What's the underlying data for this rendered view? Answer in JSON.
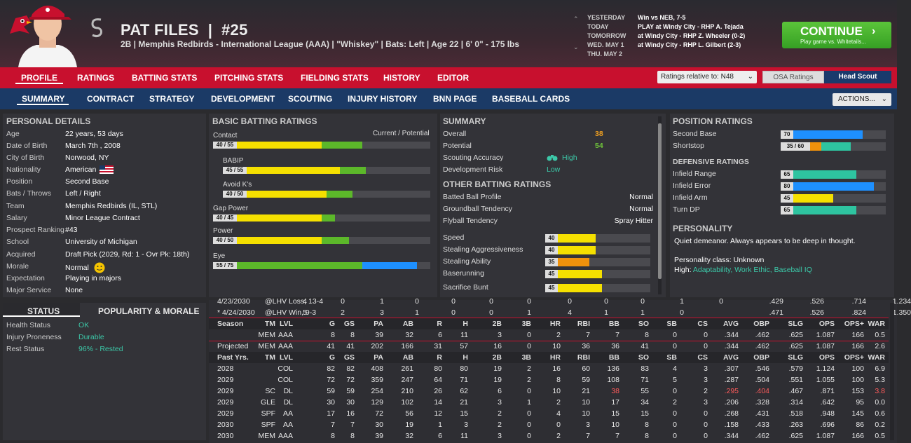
{
  "header": {
    "name": "PAT FILES",
    "number": "#25",
    "subtitle": "2B | Memphis Redbirds - International League (AAA)  |  \"Whiskey\" | Bats: Left  |  Age 22  |  6' 0\" - 175 lbs"
  },
  "schedule": [
    {
      "day": "YESTERDAY",
      "game": "Win vs NEB, 7-5"
    },
    {
      "day": "TODAY",
      "game": "PLAY at Windy City - RHP A. Tejada"
    },
    {
      "day": "TOMORROW",
      "game": "at Windy City - RHP Z. Wheeler (0-2)"
    },
    {
      "day": "WED. MAY 1",
      "game": "at Windy City - RHP L. Gilbert (2-3)"
    },
    {
      "day": "THU. MAY 2",
      "game": ""
    }
  ],
  "continue": {
    "label": "CONTINUE",
    "sub": "Play game vs. Whitetails..."
  },
  "nav1": [
    "PROFILE",
    "RATINGS",
    "BATTING STATS",
    "PITCHING STATS",
    "FIELDING STATS",
    "HISTORY",
    "EDITOR"
  ],
  "ratings_rel": "Ratings relative to: N48",
  "osa": "OSA Ratings",
  "scout": "Head Scout",
  "nav2": [
    "SUMMARY",
    "CONTRACT",
    "STRATEGY",
    "DEVELOPMENT",
    "SCOUTING",
    "INJURY HISTORY",
    "BNN PAGE",
    "BASEBALL CARDS"
  ],
  "actions": "ACTIONS...",
  "personal": {
    "title": "PERSONAL DETAILS",
    "rows": [
      {
        "label": "Age",
        "value": "22 years, 53 days"
      },
      {
        "label": "Date of Birth",
        "value": "March 7th , 2008"
      },
      {
        "label": "City of Birth",
        "value": "Norwood, NY"
      },
      {
        "label": "Nationality",
        "value": "American"
      },
      {
        "label": "Position",
        "value": "Second Base"
      },
      {
        "label": "Bats / Throws",
        "value": "Left / Right"
      },
      {
        "label": "Team",
        "value": "Memphis Redbirds (IL, STL)"
      },
      {
        "label": "Salary",
        "value": "Minor League Contract"
      },
      {
        "label": "Prospect Ranking",
        "value": "#43"
      },
      {
        "label": "School",
        "value": "University of Michigan"
      },
      {
        "label": "Acquired",
        "value": "Draft Pick (2029, Rd: 1 - Ovr Pk: 18th)"
      },
      {
        "label": "Morale",
        "value": "Normal"
      },
      {
        "label": "Expectation",
        "value": "Playing in majors"
      },
      {
        "label": "Major Service",
        "value": "None"
      }
    ]
  },
  "status": {
    "tab1": "STATUS",
    "tab2": "POPULARITY & MORALE",
    "rows": [
      {
        "label": "Health Status",
        "value": "OK"
      },
      {
        "label": "Injury Proneness",
        "value": "Durable"
      },
      {
        "label": "Rest Status",
        "value": "96% - Rested"
      }
    ]
  },
  "batting": {
    "title": "BASIC BATTING RATINGS",
    "header_right": "Current / Potential",
    "ratings": [
      {
        "name": "Contact",
        "label": "40 / 55",
        "current": 40,
        "potential": 55,
        "indent": false
      },
      {
        "name": "BABIP",
        "label": "45 / 55",
        "current": 45,
        "potential": 55,
        "indent": true
      },
      {
        "name": "Avoid K's",
        "label": "40 / 50",
        "current": 40,
        "potential": 50,
        "indent": true
      },
      {
        "name": "Gap Power",
        "label": "40 / 45",
        "current": 40,
        "potential": 45,
        "indent": false
      },
      {
        "name": "Power",
        "label": "40 / 50",
        "current": 40,
        "potential": 50,
        "indent": false
      },
      {
        "name": "Eye",
        "label": "55 / 75",
        "current": 55,
        "potential": 75,
        "indent": false
      }
    ]
  },
  "summary": {
    "title": "SUMMARY",
    "overall_label": "Overall",
    "overall": "38",
    "potential_label": "Potential",
    "potential": "54",
    "scouting_label": "Scouting Accuracy",
    "scouting": "High",
    "risk_label": "Development Risk",
    "risk": "Low",
    "other_title": "OTHER BATTING RATINGS",
    "other": [
      {
        "label": "Batted Ball Profile",
        "value": "Normal"
      },
      {
        "label": "Groundball Tendency",
        "value": "Normal"
      },
      {
        "label": "Flyball Tendency",
        "value": "Spray Hitter"
      }
    ],
    "running": [
      {
        "label": "Speed",
        "value": 40
      },
      {
        "label": "Stealing Aggressiveness",
        "value": 40
      },
      {
        "label": "Stealing Ability",
        "value": 35
      },
      {
        "label": "Baserunning",
        "value": 45
      },
      {
        "label": "Sacrifice Bunt",
        "value": 45
      }
    ]
  },
  "position": {
    "title": "POSITION RATINGS",
    "positions": [
      {
        "label": "Second Base",
        "value": "70",
        "current": 70,
        "potential": 70
      },
      {
        "label": "Shortstop",
        "value": "35 / 60",
        "current": 35,
        "potential": 60
      }
    ],
    "def_title": "DEFENSIVE RATINGS",
    "defensive": [
      {
        "label": "Infield Range",
        "value": 65
      },
      {
        "label": "Infield Error",
        "value": 80
      },
      {
        "label": "Infield Arm",
        "value": 45
      },
      {
        "label": "Turn DP",
        "value": 65
      }
    ],
    "pers_title": "PERSONALITY",
    "pers_text": "Quiet demeanor. Always appears to be deep in thought.",
    "pers_class": "Personality class: Unknown",
    "high_label": "High:",
    "high_value": "Adaptability, Work Ethic, Baseball IQ"
  },
  "stats": {
    "games": [
      {
        "c0": "4/23/2030",
        "c1": "@LHV Loss, 13-4",
        "vals": [
          "4",
          "0",
          "1",
          "0",
          "0",
          "0",
          "0",
          "0",
          "0",
          "0",
          "1",
          "0",
          ".429",
          ".526",
          ".714",
          "1.234"
        ]
      },
      {
        "c0": "* 4/24/2030",
        "c1": "@LHV Win, 9-3",
        "vals": [
          "5",
          "2",
          "3",
          "1",
          "0",
          "0",
          "1",
          "4",
          "1",
          "1",
          "0",
          "",
          ".471",
          ".526",
          ".824",
          "1.350"
        ]
      }
    ],
    "season_header": [
      "Season",
      "TM",
      "LVL",
      "G",
      "GS",
      "PA",
      "AB",
      "R",
      "H",
      "2B",
      "3B",
      "HR",
      "RBI",
      "BB",
      "SO",
      "SB",
      "CS",
      "AVG",
      "OBP",
      "SLG",
      "OPS",
      "OPS+",
      "WAR"
    ],
    "season_rows": [
      [
        "",
        "MEM",
        "AAA",
        "8",
        "8",
        "39",
        "32",
        "6",
        "11",
        "3",
        "0",
        "2",
        "7",
        "7",
        "8",
        "0",
        "0",
        ".344",
        ".462",
        ".625",
        "1.087",
        "166",
        "0.5"
      ],
      [
        "Projected",
        "MEM",
        "AAA",
        "41",
        "41",
        "202",
        "166",
        "31",
        "57",
        "16",
        "0",
        "10",
        "36",
        "36",
        "41",
        "0",
        "0",
        ".344",
        ".462",
        ".625",
        "1.087",
        "166",
        "2.6"
      ]
    ],
    "past_header": [
      "Past Yrs.",
      "TM",
      "LVL",
      "G",
      "GS",
      "PA",
      "AB",
      "R",
      "H",
      "2B",
      "3B",
      "HR",
      "RBI",
      "BB",
      "SO",
      "SB",
      "CS",
      "AVG",
      "OBP",
      "SLG",
      "OPS",
      "OPS+",
      "WAR"
    ],
    "past_rows": [
      [
        "2028",
        "",
        "COL",
        "82",
        "82",
        "408",
        "261",
        "80",
        "80",
        "19",
        "2",
        "16",
        "60",
        "136",
        "83",
        "4",
        "3",
        ".307",
        ".546",
        ".579",
        "1.124",
        "100",
        "6.9"
      ],
      [
        "2029",
        "",
        "COL",
        "72",
        "72",
        "359",
        "247",
        "64",
        "71",
        "19",
        "2",
        "8",
        "59",
        "108",
        "71",
        "5",
        "3",
        ".287",
        ".504",
        ".551",
        "1.055",
        "100",
        "5.3"
      ],
      [
        "2029",
        "SC",
        "DL",
        "59",
        "59",
        "254",
        "210",
        "26",
        "62",
        "6",
        "0",
        "10",
        "21",
        "38",
        "55",
        "0",
        "2",
        ".295",
        ".404",
        ".467",
        ".871",
        "153",
        "3.8"
      ],
      [
        "2029",
        "GLE",
        "DL",
        "30",
        "30",
        "129",
        "102",
        "14",
        "21",
        "3",
        "1",
        "2",
        "10",
        "17",
        "34",
        "2",
        "3",
        ".206",
        ".328",
        ".314",
        ".642",
        "95",
        "0.0"
      ],
      [
        "2029",
        "SPF",
        "AA",
        "17",
        "16",
        "72",
        "56",
        "12",
        "15",
        "2",
        "0",
        "4",
        "10",
        "15",
        "15",
        "0",
        "0",
        ".268",
        ".431",
        ".518",
        ".948",
        "145",
        "0.6"
      ],
      [
        "2030",
        "SPF",
        "AA",
        "7",
        "7",
        "30",
        "19",
        "1",
        "3",
        "2",
        "0",
        "0",
        "3",
        "10",
        "8",
        "0",
        "0",
        ".158",
        ".433",
        ".263",
        ".696",
        "86",
        "0.2"
      ],
      [
        "2030",
        "MEM",
        "AAA",
        "8",
        "8",
        "39",
        "32",
        "6",
        "11",
        "3",
        "0",
        "2",
        "7",
        "7",
        "8",
        "0",
        "0",
        ".344",
        ".462",
        ".625",
        "1.087",
        "166",
        "0.5"
      ]
    ]
  },
  "colors": {
    "red": "#c8102e",
    "navy": "#1b3a66",
    "yellow": "#f5e000",
    "green": "#5cb82a",
    "blue": "#1e90ff",
    "teal": "#2ec4a0",
    "orange": "#f0920c"
  }
}
